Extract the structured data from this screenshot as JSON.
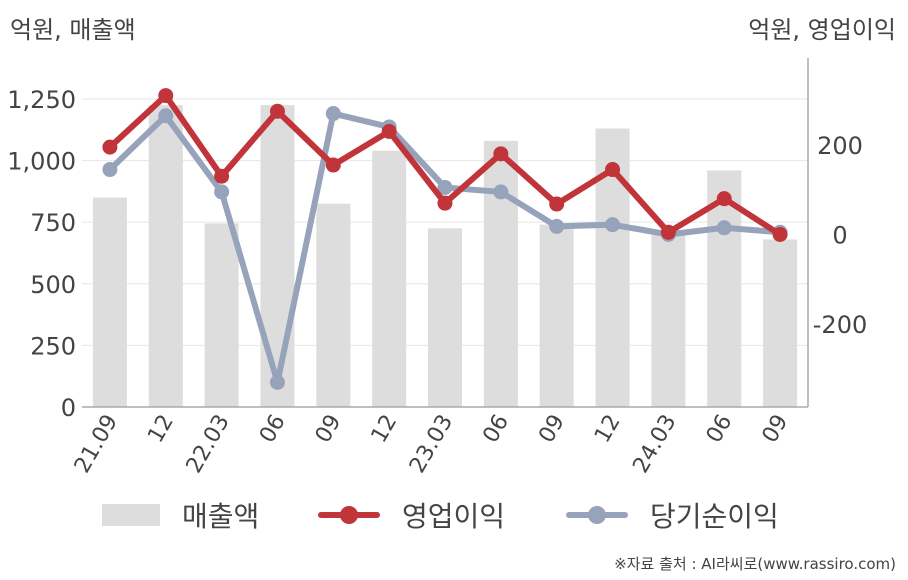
{
  "chart_data": {
    "type": "bar+line",
    "left_axis_title": "억원, 매출액",
    "right_axis_title": "억원, 영업이익",
    "categories": [
      "21.09",
      "12",
      "22.03",
      "06",
      "09",
      "12",
      "23.03",
      "06",
      "09",
      "12",
      "24.03",
      "06",
      "09"
    ],
    "left_ticks": [
      "0",
      "250",
      "500",
      "750",
      "1,000",
      "1,250"
    ],
    "right_ticks": [
      "-200",
      "0",
      "200"
    ],
    "left_ylim": [
      0,
      1400
    ],
    "right_ylim": [
      -385,
      385
    ],
    "series": [
      {
        "name": "매출액",
        "type": "bar",
        "axis": "left",
        "color": "#dddddd",
        "values": [
          850,
          1225,
          745,
          1225,
          825,
          1040,
          725,
          1080,
          740,
          1130,
          705,
          960,
          680
        ]
      },
      {
        "name": "영업이익",
        "type": "line",
        "axis": "right",
        "color": "#c0343a",
        "values": [
          195,
          310,
          130,
          275,
          155,
          230,
          70,
          180,
          68,
          145,
          5,
          80,
          0
        ]
      },
      {
        "name": "당기순이익",
        "type": "line",
        "axis": "right",
        "color": "#97a3bb",
        "values": [
          145,
          265,
          95,
          -330,
          270,
          240,
          105,
          95,
          18,
          22,
          0,
          15,
          5
        ]
      }
    ],
    "grid": true,
    "legend_position": "bottom"
  },
  "legend": {
    "sales": "매출액",
    "operating": "영업이익",
    "net": "당기순이익"
  },
  "source": "※자료 출처 : AI라씨로(www.rassiro.com)"
}
